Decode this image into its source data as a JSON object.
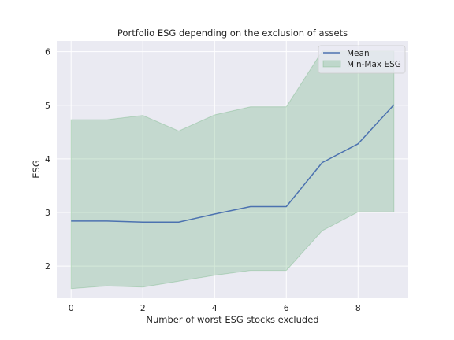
{
  "chart_data": {
    "type": "line",
    "title": "Portfolio ESG depending on the exclusion of assets",
    "xlabel": "Number of worst ESG stocks excluded",
    "ylabel": "ESG",
    "x": [
      0,
      1,
      2,
      3,
      4,
      5,
      6,
      7,
      8,
      9
    ],
    "xlim": [
      -0.4,
      9.4
    ],
    "ylim": [
      1.4,
      6.2
    ],
    "xticks": [
      0,
      2,
      4,
      6,
      8
    ],
    "yticks": [
      2,
      3,
      4,
      5,
      6
    ],
    "grid": true,
    "legend_position": "top-right",
    "series": [
      {
        "name": "Mean",
        "kind": "line",
        "color": "#4c72b0",
        "values": [
          2.84,
          2.84,
          2.82,
          2.82,
          2.97,
          3.11,
          3.11,
          3.93,
          4.28,
          5.01
        ]
      },
      {
        "name": "Min-Max ESG",
        "kind": "band",
        "color": "#55a868",
        "min": [
          1.58,
          1.63,
          1.61,
          1.72,
          1.83,
          1.92,
          1.92,
          2.66,
          3.01,
          3.01
        ],
        "max": [
          4.73,
          4.73,
          4.81,
          4.52,
          4.82,
          4.97,
          4.97,
          6.01,
          6.01,
          6.01
        ]
      }
    ]
  }
}
